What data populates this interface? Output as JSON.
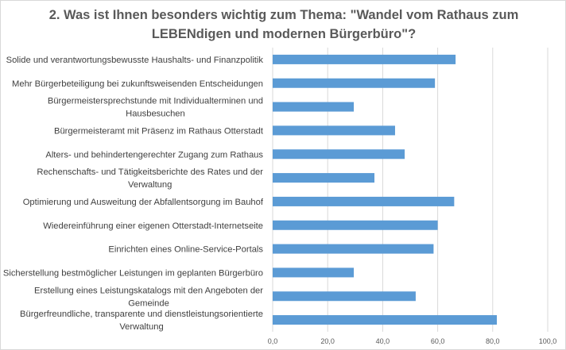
{
  "chart_data": {
    "type": "bar",
    "orientation": "horizontal",
    "title_lines": [
      "2. Was ist Ihnen besonders wichtig zum Thema: \"Wandel vom Rathaus zum",
      "LEBENdigen und modernen Bürgerbüro\"?"
    ],
    "categories": [
      [
        "Solide und verantwortungsbewusste Haushalts- und Finanzpolitik"
      ],
      [
        "Mehr Bürgerbeteiligung bei zukunftsweisenden Entscheidungen"
      ],
      [
        "Bürgermeistersprechstunde mit Individualterminen und",
        "Hausbesuchen"
      ],
      [
        "Bürgermeisteramt mit Präsenz im Rathaus Otterstadt"
      ],
      [
        "Alters- und behindertengerechter Zugang zum Rathaus"
      ],
      [
        "Rechenschafts- und Tätigkeitsberichte des Rates und der",
        "Verwaltung"
      ],
      [
        "Optimierung und Ausweitung der Abfallentsorgung im Bauhof"
      ],
      [
        "Wiedereinführung einer eigenen Otterstadt-Internetseite"
      ],
      [
        "Einrichten eines Online-Service-Portals"
      ],
      [
        "Sicherstellung bestmöglicher Leistungen im geplanten Bürgerbüro"
      ],
      [
        "Erstellung eines Leistungskatalogs mit den Angeboten der",
        "Gemeinde"
      ],
      [
        "Bürgerfreundliche, transparente und dienstleistungsorientierte",
        "Verwaltung"
      ]
    ],
    "values": [
      66.5,
      59.0,
      29.5,
      44.5,
      48.0,
      37.0,
      66.0,
      60.0,
      58.5,
      29.5,
      52.0,
      81.5
    ],
    "xlim": [
      0,
      100
    ],
    "ticks": [
      "0,0",
      "20,0",
      "40,0",
      "60,0",
      "80,0",
      "100,0"
    ],
    "grid": true,
    "legend": "none",
    "bar_color": "#5b9bd5",
    "grid_color": "#d9d9d9"
  }
}
